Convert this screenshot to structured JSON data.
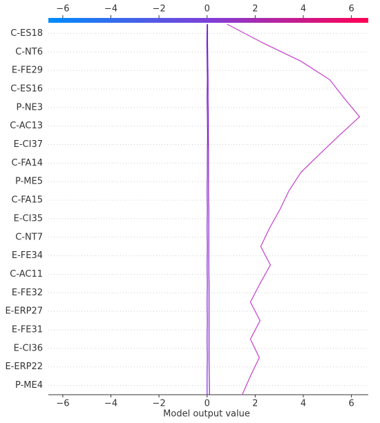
{
  "chart_data": {
    "type": "decision",
    "xlabel": "Model output value",
    "features": [
      "C-ES18",
      "C-NT6",
      "E-FE29",
      "C-ES16",
      "P-NE3",
      "C-AC13",
      "E-CI37",
      "C-FA14",
      "P-ME5",
      "C-FA15",
      "E-CI35",
      "C-NT7",
      "E-FE34",
      "C-AC11",
      "E-FE32",
      "E-ERP27",
      "E-FE31",
      "E-CI36",
      "E-ERP22",
      "P-ME4"
    ],
    "lines": [
      {
        "color": "#7b22d4",
        "values": [
          0.0,
          -0.01,
          0.0,
          0.01,
          0.0,
          0.01,
          0.02,
          0.01,
          0.01,
          0.0,
          0.01,
          0.0,
          0.01,
          0.0,
          0.01,
          0.0,
          0.01,
          0.0,
          0.01,
          0.0,
          0.0
        ]
      },
      {
        "color": "#8a1fc8",
        "values": [
          0.02,
          0.02,
          0.03,
          0.04,
          0.04,
          0.05,
          0.05,
          0.06,
          0.06,
          0.06,
          0.07,
          0.07,
          0.07,
          0.07,
          0.08,
          0.08,
          0.08,
          0.08,
          0.08,
          0.09,
          0.1
        ]
      },
      {
        "color": "#c43ccb",
        "values": [
          0.83,
          2.3,
          3.9,
          5.1,
          5.7,
          6.34,
          5.5,
          4.69,
          3.9,
          3.4,
          3.03,
          2.6,
          2.23,
          2.63,
          2.2,
          1.8,
          2.2,
          1.8,
          2.17,
          1.8,
          1.46
        ]
      }
    ],
    "xlim": [
      -6.6,
      6.7
    ],
    "xticks": [
      {
        "value": -6,
        "label": "−6"
      },
      {
        "value": -4,
        "label": "−4"
      },
      {
        "value": -2,
        "label": "−2"
      },
      0,
      2,
      4,
      6
    ],
    "colorbar": [
      "#008bfb",
      "#7e3fd9",
      "#ff0052"
    ],
    "grid": true
  }
}
